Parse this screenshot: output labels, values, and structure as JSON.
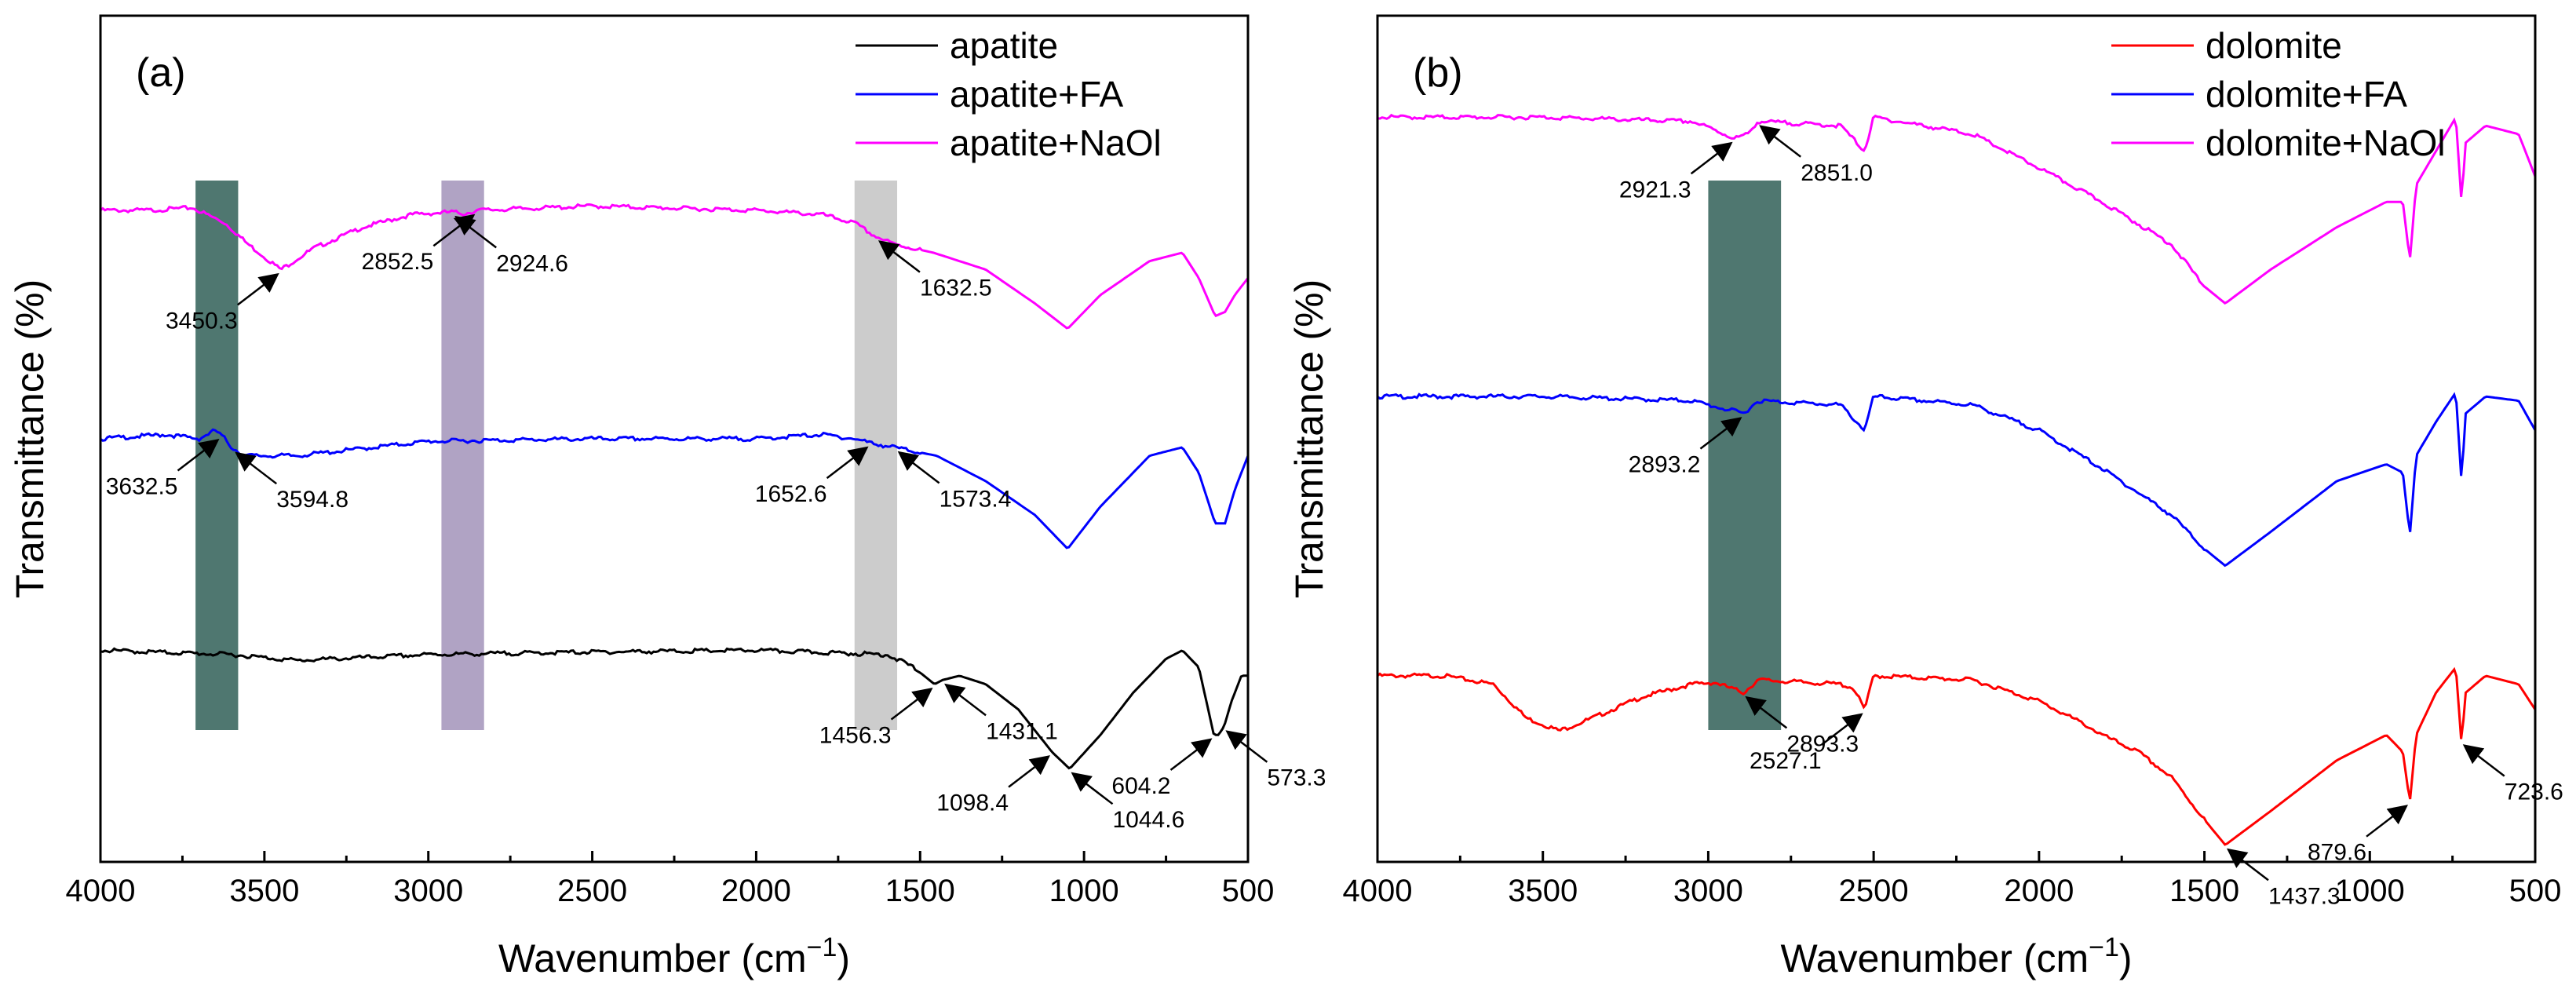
{
  "chart_data": [
    {
      "type": "line",
      "panel_label": "(a)",
      "xlabel": "Wavenumber (cm",
      "xlabel_sup": "−1",
      "xlabel_close": ")",
      "ylabel": "Transmittance (%)",
      "xlim": [
        4000,
        500
      ],
      "x_reversed": true,
      "xticks": [
        "4000",
        "3500",
        "3000",
        "2500",
        "2000",
        "1500",
        "1000",
        "500"
      ],
      "legend_position": "top-right",
      "bands": [
        {
          "from": 3710,
          "to": 3580,
          "color": "#4f7770"
        },
        {
          "from": 2960,
          "to": 2830,
          "color": "#b0a3c4"
        },
        {
          "from": 1700,
          "to": 1570,
          "color": "#cccccc"
        }
      ],
      "series": [
        {
          "name": "apatite+NaOl",
          "color": "#ff00ff",
          "offset": 0.77,
          "points": [
            [
              4000,
              0.0
            ],
            [
              3850,
              0.0
            ],
            [
              3720,
              0.003
            ],
            [
              3620,
              -0.015
            ],
            [
              3550,
              -0.04
            ],
            [
              3450,
              -0.07
            ],
            [
              3350,
              -0.045
            ],
            [
              3200,
              -0.02
            ],
            [
              3050,
              -0.005
            ],
            [
              2930,
              -0.002
            ],
            [
              2890,
              -0.004
            ],
            [
              2850,
              0.0
            ],
            [
              2500,
              0.005
            ],
            [
              2000,
              0.0
            ],
            [
              1800,
              -0.005
            ],
            [
              1700,
              -0.015
            ],
            [
              1640,
              -0.03
            ],
            [
              1580,
              -0.04
            ],
            [
              1460,
              -0.05
            ],
            [
              1300,
              -0.07
            ],
            [
              1150,
              -0.11
            ],
            [
              1050,
              -0.14
            ],
            [
              950,
              -0.1
            ],
            [
              800,
              -0.06
            ],
            [
              700,
              -0.05
            ],
            [
              650,
              -0.08
            ],
            [
              600,
              -0.125
            ],
            [
              570,
              -0.12
            ],
            [
              540,
              -0.1
            ],
            [
              500,
              -0.08
            ]
          ]
        },
        {
          "name": "apatite+FA",
          "color": "#0000ff",
          "offset": 0.5,
          "points": [
            [
              4000,
              0.0
            ],
            [
              3800,
              0.005
            ],
            [
              3700,
              0.0
            ],
            [
              3650,
              0.01
            ],
            [
              3620,
              0.0
            ],
            [
              3600,
              -0.01
            ],
            [
              3560,
              -0.02
            ],
            [
              3400,
              -0.02
            ],
            [
              3000,
              -0.003
            ],
            [
              2500,
              0.0
            ],
            [
              2000,
              0.0
            ],
            [
              1800,
              0.005
            ],
            [
              1700,
              0.0
            ],
            [
              1650,
              -0.005
            ],
            [
              1580,
              -0.01
            ],
            [
              1450,
              -0.02
            ],
            [
              1300,
              -0.05
            ],
            [
              1150,
              -0.09
            ],
            [
              1050,
              -0.13
            ],
            [
              950,
              -0.08
            ],
            [
              800,
              -0.02
            ],
            [
              700,
              -0.01
            ],
            [
              650,
              -0.04
            ],
            [
              600,
              -0.1
            ],
            [
              570,
              -0.1
            ],
            [
              540,
              -0.06
            ],
            [
              500,
              -0.02
            ]
          ]
        },
        {
          "name": "apatite",
          "color": "#000000",
          "offset": 0.25,
          "points": [
            [
              4000,
              0.0
            ],
            [
              3600,
              -0.005
            ],
            [
              3400,
              -0.012
            ],
            [
              3000,
              -0.005
            ],
            [
              2500,
              -0.002
            ],
            [
              2000,
              0.0
            ],
            [
              1600,
              -0.005
            ],
            [
              1520,
              -0.02
            ],
            [
              1456,
              -0.04
            ],
            [
              1431,
              -0.035
            ],
            [
              1380,
              -0.03
            ],
            [
              1300,
              -0.04
            ],
            [
              1200,
              -0.07
            ],
            [
              1098,
              -0.12
            ],
            [
              1044,
              -0.14
            ],
            [
              950,
              -0.1
            ],
            [
              850,
              -0.05
            ],
            [
              750,
              -0.01
            ],
            [
              700,
              0.0
            ],
            [
              650,
              -0.02
            ],
            [
              604,
              -0.1
            ],
            [
              590,
              -0.1
            ],
            [
              573,
              -0.09
            ],
            [
              550,
              -0.06
            ],
            [
              520,
              -0.03
            ],
            [
              500,
              -0.03
            ]
          ]
        }
      ],
      "annotations": [
        {
          "text": "3450.3",
          "series": 0,
          "x": 3450
        },
        {
          "text": "2924.6",
          "series": 0,
          "x": 2924.6
        },
        {
          "text": "2852.5",
          "series": 0,
          "x": 2852.5
        },
        {
          "text": "1632.5",
          "series": 0,
          "x": 1632.5
        },
        {
          "text": "3632.5",
          "series": 1,
          "x": 3632.5
        },
        {
          "text": "3594.8",
          "series": 1,
          "x": 3594.8
        },
        {
          "text": "1652.6",
          "series": 1,
          "x": 1652.6
        },
        {
          "text": "1573.4",
          "series": 1,
          "x": 1573.4
        },
        {
          "text": "1456.3",
          "series": 2,
          "x": 1456.3
        },
        {
          "text": "1431.1",
          "series": 2,
          "x": 1431.1
        },
        {
          "text": "1098.4",
          "series": 2,
          "x": 1098.4
        },
        {
          "text": "1044.6",
          "series": 2,
          "x": 1044.6
        },
        {
          "text": "604.2",
          "series": 2,
          "x": 604.2
        },
        {
          "text": "573.3",
          "series": 2,
          "x": 573.3
        }
      ]
    },
    {
      "type": "line",
      "panel_label": "(b)",
      "xlabel": "Wavenumber (cm",
      "xlabel_sup": "−1",
      "xlabel_close": ")",
      "ylabel": "Transmittance (%)",
      "xlim": [
        4000,
        500
      ],
      "x_reversed": true,
      "xticks": [
        "4000",
        "3500",
        "3000",
        "2500",
        "2000",
        "1500",
        "1000",
        "500"
      ],
      "legend_position": "top-right",
      "bands": [
        {
          "from": 3000,
          "to": 2780,
          "color": "#4f7770"
        }
      ],
      "series": [
        {
          "name": "dolomite",
          "color": "#ff0000",
          "offset": 0.22,
          "points": [
            [
              4000,
              0.0
            ],
            [
              3800,
              0.0
            ],
            [
              3650,
              -0.01
            ],
            [
              3550,
              -0.05
            ],
            [
              3450,
              -0.065
            ],
            [
              3350,
              -0.05
            ],
            [
              3200,
              -0.025
            ],
            [
              3050,
              -0.01
            ],
            [
              2980,
              -0.008
            ],
            [
              2930,
              -0.015
            ],
            [
              2893,
              -0.02
            ],
            [
              2850,
              -0.005
            ],
            [
              2600,
              -0.01
            ],
            [
              2560,
              -0.015
            ],
            [
              2527,
              -0.04
            ],
            [
              2500,
              0.0
            ],
            [
              2200,
              -0.005
            ],
            [
              2000,
              -0.03
            ],
            [
              1850,
              -0.06
            ],
            [
              1810,
              -0.07
            ],
            [
              1700,
              -0.09
            ],
            [
              1600,
              -0.12
            ],
            [
              1500,
              -0.17
            ],
            [
              1437,
              -0.2
            ],
            [
              1300,
              -0.16
            ],
            [
              1100,
              -0.1
            ],
            [
              950,
              -0.07
            ],
            [
              900,
              -0.09
            ],
            [
              879,
              -0.15
            ],
            [
              860,
              -0.07
            ],
            [
              800,
              -0.02
            ],
            [
              740,
              0.01
            ],
            [
              723,
              -0.08
            ],
            [
              710,
              -0.02
            ],
            [
              650,
              0.0
            ],
            [
              550,
              -0.01
            ],
            [
              500,
              -0.04
            ]
          ]
        },
        {
          "name": "dolomite+FA",
          "color": "#0000ff",
          "offset": 0.55,
          "points": [
            [
              4000,
              0.0
            ],
            [
              3500,
              0.0
            ],
            [
              3050,
              -0.005
            ],
            [
              3000,
              -0.01
            ],
            [
              2893,
              -0.02
            ],
            [
              2850,
              -0.005
            ],
            [
              2600,
              -0.01
            ],
            [
              2527,
              -0.04
            ],
            [
              2500,
              0.0
            ],
            [
              2200,
              -0.01
            ],
            [
              2000,
              -0.04
            ],
            [
              1810,
              -0.085
            ],
            [
              1600,
              -0.14
            ],
            [
              1500,
              -0.18
            ],
            [
              1437,
              -0.2
            ],
            [
              1300,
              -0.16
            ],
            [
              1100,
              -0.1
            ],
            [
              950,
              -0.08
            ],
            [
              900,
              -0.09
            ],
            [
              879,
              -0.165
            ],
            [
              860,
              -0.07
            ],
            [
              800,
              -0.03
            ],
            [
              740,
              0.005
            ],
            [
              723,
              -0.1
            ],
            [
              710,
              -0.02
            ],
            [
              650,
              0.0
            ],
            [
              550,
              -0.005
            ],
            [
              500,
              -0.04
            ]
          ]
        },
        {
          "name": "dolomite+NaOl",
          "color": "#ff00ff",
          "offset": 0.88,
          "points": [
            [
              4000,
              0.0
            ],
            [
              3500,
              0.0
            ],
            [
              3050,
              -0.005
            ],
            [
              3000,
              -0.012
            ],
            [
              2921,
              -0.025
            ],
            [
              2880,
              -0.02
            ],
            [
              2851,
              -0.005
            ],
            [
              2600,
              -0.01
            ],
            [
              2527,
              -0.04
            ],
            [
              2500,
              0.0
            ],
            [
              2200,
              -0.02
            ],
            [
              2000,
              -0.06
            ],
            [
              1810,
              -0.1
            ],
            [
              1600,
              -0.15
            ],
            [
              1500,
              -0.2
            ],
            [
              1437,
              -0.22
            ],
            [
              1300,
              -0.18
            ],
            [
              1100,
              -0.13
            ],
            [
              950,
              -0.1
            ],
            [
              900,
              -0.1
            ],
            [
              879,
              -0.17
            ],
            [
              860,
              -0.08
            ],
            [
              800,
              -0.04
            ],
            [
              740,
              0.0
            ],
            [
              723,
              -0.1
            ],
            [
              710,
              -0.03
            ],
            [
              650,
              -0.01
            ],
            [
              550,
              -0.02
            ],
            [
              500,
              -0.07
            ]
          ]
        }
      ],
      "annotations": [
        {
          "text": "2921.3",
          "series": 2,
          "x": 2921.3
        },
        {
          "text": "2851.0",
          "series": 2,
          "x": 2851.0
        },
        {
          "text": "2893.2",
          "series": 1,
          "x": 2893.2
        },
        {
          "text": "2893.3",
          "series": 0,
          "x": 2893.3
        },
        {
          "text": "2527.1",
          "series": 0,
          "x": 2527.1
        },
        {
          "text": "1437.3",
          "series": 0,
          "x": 1437.3
        },
        {
          "text": "879.6",
          "series": 0,
          "x": 879.6
        },
        {
          "text": "723.6",
          "series": 0,
          "x": 723.6
        }
      ]
    }
  ]
}
